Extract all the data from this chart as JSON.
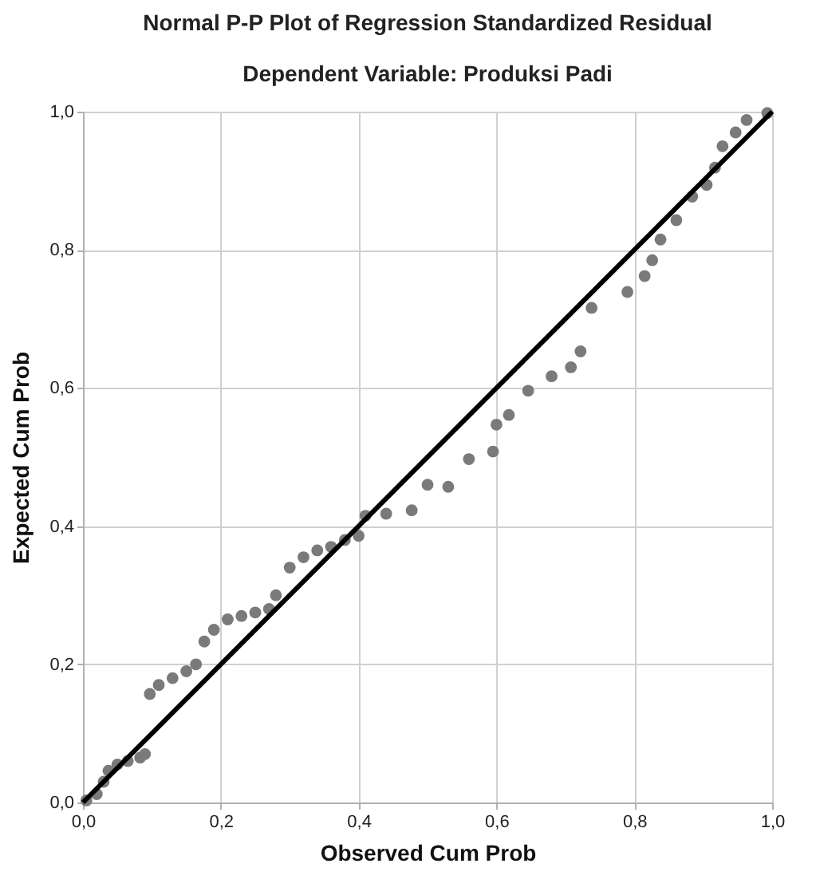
{
  "chart_data": {
    "type": "scatter",
    "title": "Normal P-P Plot of Regression Standardized Residual",
    "subtitle": "Dependent Variable: Produksi Padi",
    "xlabel": "Observed Cum Prob",
    "ylabel": "Expected Cum Prob",
    "xlim": [
      0,
      1
    ],
    "ylim": [
      0,
      1
    ],
    "xticks": [
      {
        "value": 0,
        "label": "0,0"
      },
      {
        "value": 0.2,
        "label": "0,2"
      },
      {
        "value": 0.4,
        "label": "0,4"
      },
      {
        "value": 0.6,
        "label": "0,6"
      },
      {
        "value": 0.8,
        "label": "0,8"
      },
      {
        "value": 1,
        "label": "1,0"
      }
    ],
    "yticks": [
      {
        "value": 0,
        "label": "0,0"
      },
      {
        "value": 0.2,
        "label": "0,2"
      },
      {
        "value": 0.4,
        "label": "0,4"
      },
      {
        "value": 0.6,
        "label": "0,6"
      },
      {
        "value": 0.8,
        "label": "0,8"
      },
      {
        "value": 1,
        "label": "1,0"
      }
    ],
    "grid": true,
    "series": [
      {
        "marker": "circle",
        "color": "#7a7a7a",
        "x": [
          0.005,
          0.02,
          0.03,
          0.037,
          0.05,
          0.065,
          0.083,
          0.09,
          0.097,
          0.11,
          0.13,
          0.15,
          0.164,
          0.176,
          0.19,
          0.21,
          0.23,
          0.25,
          0.27,
          0.28,
          0.3,
          0.32,
          0.34,
          0.36,
          0.38,
          0.4,
          0.41,
          0.44,
          0.477,
          0.5,
          0.53,
          0.56,
          0.595,
          0.6,
          0.618,
          0.646,
          0.68,
          0.708,
          0.722,
          0.738,
          0.79,
          0.815,
          0.826,
          0.838,
          0.861,
          0.884,
          0.905,
          0.917,
          0.928,
          0.947,
          0.963,
          0.993
        ],
        "values": [
          0.003,
          0.012,
          0.03,
          0.046,
          0.055,
          0.06,
          0.065,
          0.07,
          0.157,
          0.17,
          0.18,
          0.19,
          0.2,
          0.233,
          0.25,
          0.265,
          0.27,
          0.275,
          0.28,
          0.3,
          0.34,
          0.355,
          0.365,
          0.37,
          0.38,
          0.386,
          0.415,
          0.418,
          0.423,
          0.46,
          0.457,
          0.497,
          0.508,
          0.547,
          0.561,
          0.596,
          0.617,
          0.63,
          0.653,
          0.716,
          0.739,
          0.762,
          0.785,
          0.815,
          0.843,
          0.877,
          0.894,
          0.919,
          0.95,
          0.97,
          0.988,
          0.998
        ]
      },
      {
        "type": "line",
        "color": "#000000",
        "x": [
          0,
          1
        ],
        "values": [
          0,
          1
        ]
      }
    ]
  }
}
